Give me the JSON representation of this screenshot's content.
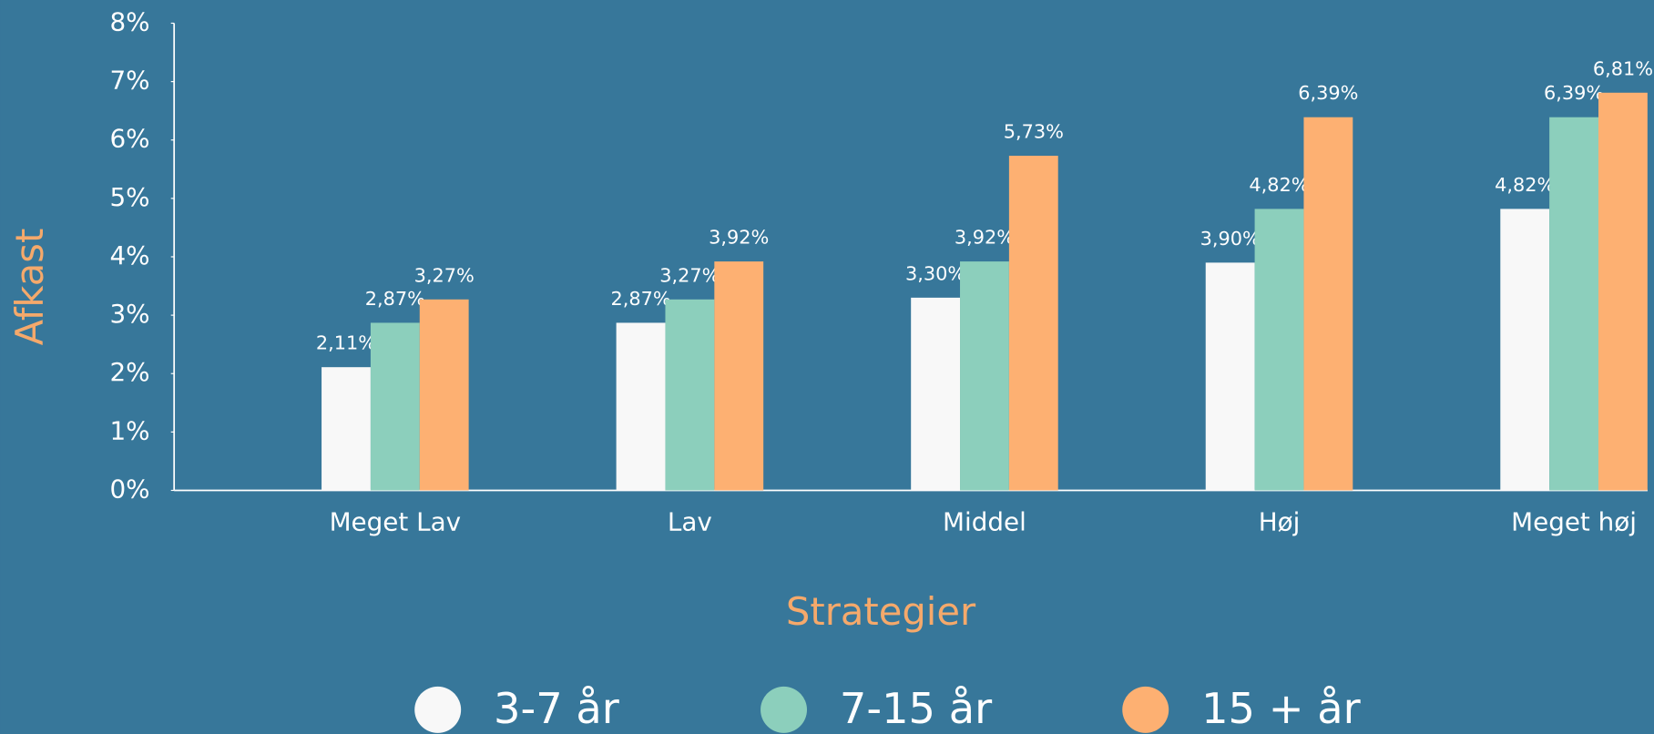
{
  "chart_data": {
    "type": "bar",
    "x_label": "Strategier",
    "y_label": "Afkast",
    "categories": [
      "Meget Lav",
      "Lav",
      "Middel",
      "Høj",
      "Meget høj"
    ],
    "series": [
      {
        "name": "3-7 år",
        "color": "#f8f8f8",
        "values": [
          2.11,
          2.87,
          3.3,
          3.9,
          4.82
        ],
        "value_labels": [
          "2,11%",
          "2,87%",
          "3,30%",
          "3,90%",
          "4,82%"
        ]
      },
      {
        "name": "7-15 år",
        "color": "#8ccfbc",
        "values": [
          2.87,
          3.27,
          3.92,
          4.82,
          6.39
        ],
        "value_labels": [
          "2,87%",
          "3,27%",
          "3,92%",
          "4,82%",
          "6,39%"
        ]
      },
      {
        "name": "15 + år",
        "color": "#fdb072",
        "values": [
          3.27,
          3.92,
          5.73,
          6.39,
          6.81
        ],
        "value_labels": [
          "3,27%",
          "3,92%",
          "5,73%",
          "6,39%",
          "6,81%"
        ]
      }
    ],
    "ylim": [
      0,
      8
    ],
    "yticks": [
      {
        "value": 0,
        "label": "0%"
      },
      {
        "value": 1,
        "label": "1%"
      },
      {
        "value": 2,
        "label": "2%"
      },
      {
        "value": 3,
        "label": "3%"
      },
      {
        "value": 4,
        "label": "4%"
      },
      {
        "value": 5,
        "label": "5%"
      },
      {
        "value": 6,
        "label": "6%"
      },
      {
        "value": 7,
        "label": "7%"
      },
      {
        "value": 8,
        "label": "8%"
      }
    ],
    "grid": false,
    "legend": "bottom"
  }
}
